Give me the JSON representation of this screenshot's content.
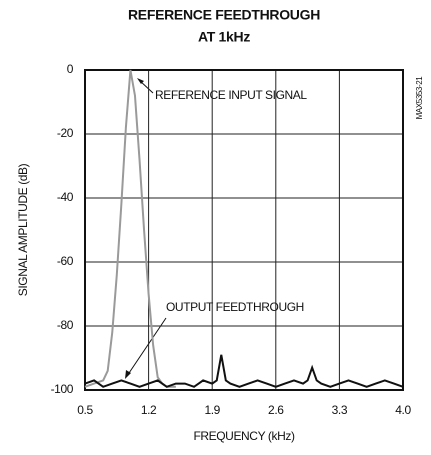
{
  "chart_data": {
    "type": "line",
    "title": "REFERENCE FEEDTHROUGH",
    "subtitle": "AT 1kHz",
    "x_label": "FREQUENCY (kHz)",
    "y_label": "SIGNAL AMPLITUDE (dB)",
    "side_note": "MAX5353-21",
    "annotations": [
      "REFERENCE INPUT SIGNAL",
      "OUTPUT FEEDTHROUGH"
    ],
    "xlim": [
      0.5,
      4.0
    ],
    "xticks": [
      0.5,
      1.2,
      1.9,
      2.6,
      3.3,
      {
        "value": 4,
        "label": "4.0"
      }
    ],
    "ylim": [
      -100,
      0
    ],
    "yticks": [
      0,
      -20,
      -40,
      -60,
      -80,
      -100
    ],
    "grid": true,
    "series": [
      {
        "color": "#9a9a9a",
        "x": [
          0.5,
          0.6,
          0.7,
          0.75,
          0.8,
          0.85,
          0.9,
          0.95,
          1.0,
          1.05,
          1.1,
          1.15,
          1.2,
          1.25,
          1.3,
          1.35,
          1.4,
          1.5
        ],
        "values": [
          -99,
          -98,
          -97,
          -94,
          -82,
          -64,
          -42,
          -18,
          0,
          -8,
          -28,
          -50,
          -70,
          -86,
          -96,
          -98,
          -99,
          -99
        ]
      },
      {
        "color": "#111111",
        "x": [
          0.5,
          0.6,
          0.7,
          0.8,
          0.9,
          1.0,
          1.1,
          1.2,
          1.3,
          1.4,
          1.5,
          1.6,
          1.7,
          1.8,
          1.9,
          1.95,
          2.0,
          2.05,
          2.1,
          2.2,
          2.3,
          2.4,
          2.5,
          2.6,
          2.7,
          2.8,
          2.9,
          2.95,
          3.0,
          3.05,
          3.1,
          3.2,
          3.3,
          3.4,
          3.5,
          3.6,
          3.7,
          3.8,
          3.9,
          4.0
        ],
        "values": [
          -98,
          -97,
          -99,
          -98,
          -97,
          -98,
          -99,
          -98,
          -97,
          -99,
          -98,
          -98,
          -99,
          -97,
          -98,
          -97,
          -89,
          -97,
          -98,
          -99,
          -98,
          -97,
          -98,
          -99,
          -98,
          -97,
          -98,
          -97,
          -93,
          -97,
          -98,
          -99,
          -98,
          -97,
          -98,
          -99,
          -98,
          -97,
          -98,
          -99
        ]
      }
    ]
  }
}
